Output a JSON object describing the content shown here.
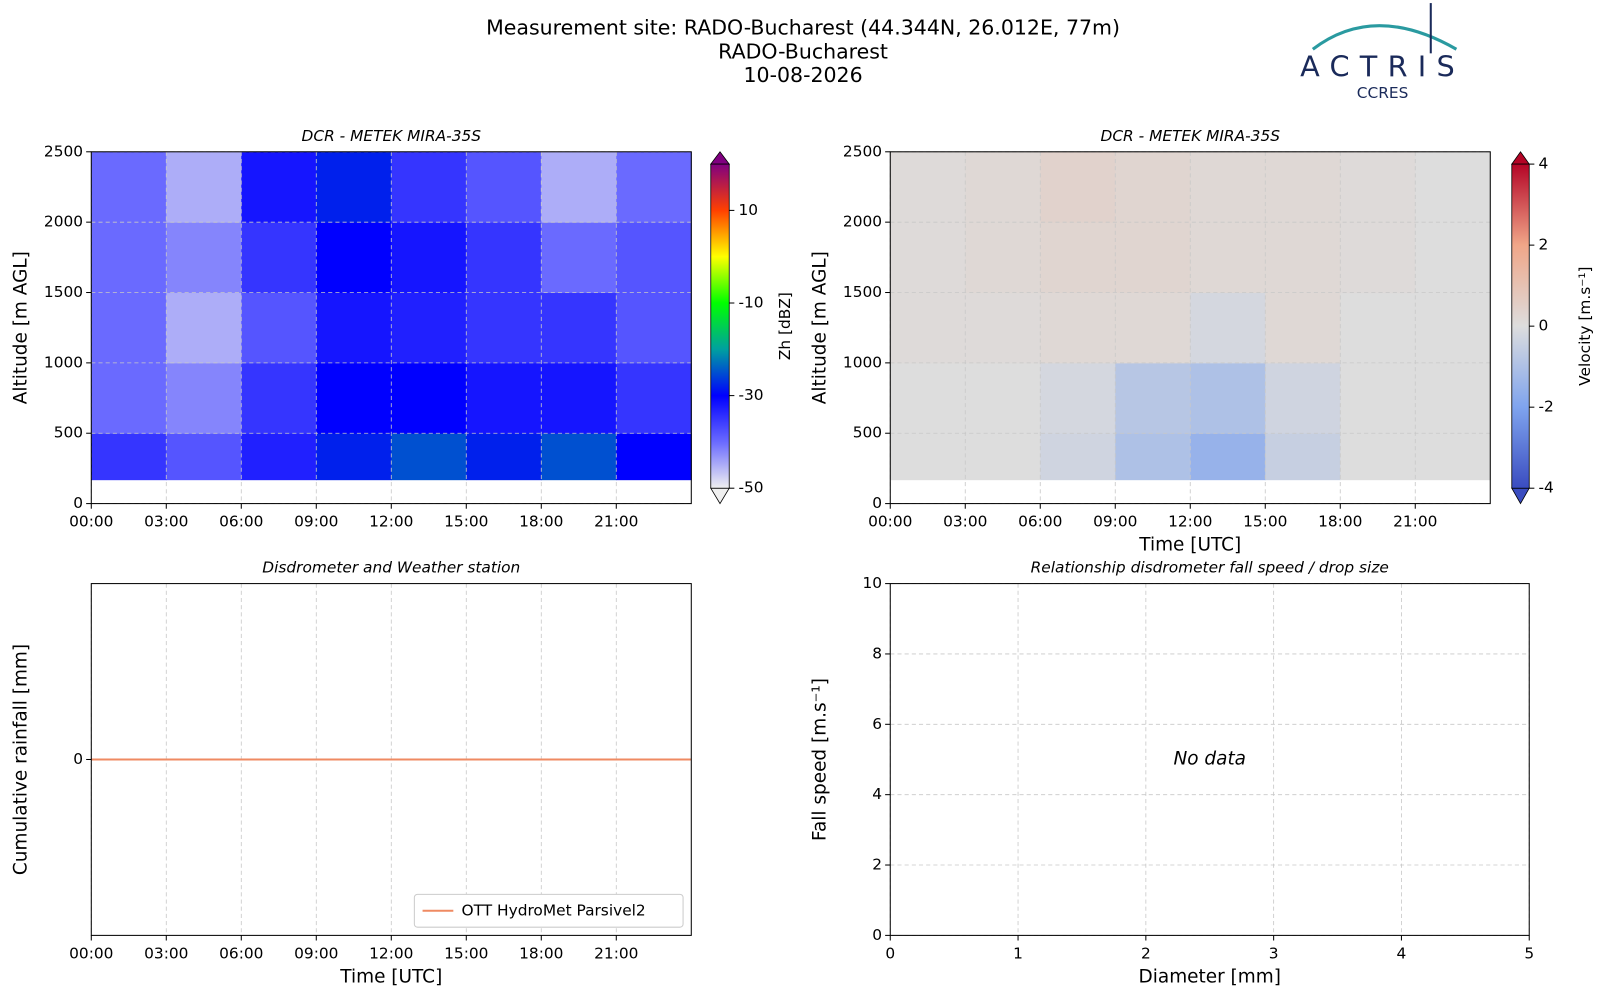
{
  "header": {
    "title": [
      "Measurement site: RADO-Bucharest (44.344N, 26.012E, 77m)",
      "RADO-Bucharest",
      "10-08-2026"
    ],
    "logo": {
      "name": "ACTRIS",
      "sub": "CCRES"
    }
  },
  "chart_data": [
    {
      "type": "heatmap",
      "title": "DCR - METEK MIRA-35S",
      "ylabel": "Altitude [m AGL]",
      "xlim": [
        0,
        24
      ],
      "xticks": [
        {
          "value": 0,
          "label": "00:00"
        },
        {
          "value": 3,
          "label": "03:00"
        },
        {
          "value": 6,
          "label": "06:00"
        },
        {
          "value": 9,
          "label": "09:00"
        },
        {
          "value": 12,
          "label": "12:00"
        },
        {
          "value": 15,
          "label": "15:00"
        },
        {
          "value": 18,
          "label": "18:00"
        },
        {
          "value": 21,
          "label": "21:00"
        }
      ],
      "ylim": [
        0,
        2500
      ],
      "yticks": [
        0,
        500,
        1000,
        1500,
        2000,
        2500
      ],
      "grid": true,
      "xbins": [
        0,
        3,
        6,
        9,
        12,
        15,
        18,
        21,
        24
      ],
      "ybins": [
        170,
        500,
        1000,
        1500,
        2000,
        2500
      ],
      "z": [
        [
          -35,
          -38,
          -33,
          -28,
          -25,
          -28,
          -25,
          -30
        ],
        [
          -40,
          -42,
          -35,
          -30,
          -30,
          -32,
          -32,
          -35
        ],
        [
          -40,
          -45,
          -38,
          -32,
          -33,
          -35,
          -35,
          -38
        ],
        [
          -40,
          -42,
          -35,
          -30,
          -32,
          -35,
          -40,
          -38
        ],
        [
          -40,
          -45,
          -32,
          -28,
          -35,
          -38,
          -45,
          -40
        ]
      ],
      "colorbar_label": "Zh [dBZ]",
      "clim": [
        -50,
        20
      ],
      "cticks": [
        -50,
        -30,
        -10,
        10
      ],
      "colormap": [
        "#f0f0f0",
        "#6a6aff",
        "#0000ff",
        "#00a0a0",
        "#00ff00",
        "#ffff00",
        "#ff4000",
        "#800080"
      ]
    },
    {
      "type": "heatmap",
      "title": "DCR - METEK MIRA-35S",
      "ylabel": "Altitude [m AGL]",
      "xlabel": "Time [UTC]",
      "xlim": [
        0,
        24
      ],
      "xticks": [
        {
          "value": 0,
          "label": "00:00"
        },
        {
          "value": 3,
          "label": "03:00"
        },
        {
          "value": 6,
          "label": "06:00"
        },
        {
          "value": 9,
          "label": "09:00"
        },
        {
          "value": 12,
          "label": "12:00"
        },
        {
          "value": 15,
          "label": "15:00"
        },
        {
          "value": 18,
          "label": "18:00"
        },
        {
          "value": 21,
          "label": "21:00"
        }
      ],
      "ylim": [
        0,
        2500
      ],
      "yticks": [
        0,
        500,
        1000,
        1500,
        2000,
        2500
      ],
      "grid": true,
      "xbins": [
        0,
        3,
        6,
        9,
        12,
        15,
        18,
        21,
        24
      ],
      "ybins": [
        170,
        500,
        1000,
        1500,
        2000,
        2500
      ],
      "z": [
        [
          0,
          0,
          -0.3,
          -1,
          -1.5,
          -0.5,
          0,
          0
        ],
        [
          0,
          0,
          -0.2,
          -0.8,
          -1,
          -0.3,
          0,
          0
        ],
        [
          0.1,
          0.1,
          0.2,
          0.2,
          -0.2,
          0.2,
          0,
          0
        ],
        [
          0.1,
          0.2,
          0.3,
          0.3,
          0.2,
          0.2,
          0.1,
          0
        ],
        [
          0.1,
          0.2,
          0.4,
          0.3,
          0.2,
          0.2,
          0.1,
          0
        ]
      ],
      "colorbar_label": "Velocity [m.s⁻¹]",
      "clim": [
        -4,
        4
      ],
      "cticks": [
        -4,
        -2,
        0,
        2,
        4
      ],
      "colormap": [
        "#3a4cc0",
        "#7fa4ee",
        "#dddddd",
        "#f0a688",
        "#b40426"
      ]
    },
    {
      "type": "line",
      "title": "Disdrometer and Weather station",
      "ylabel": "Cumulative rainfall [mm]",
      "xlabel": "Time [UTC]",
      "xlim": [
        0,
        24
      ],
      "xticks": [
        {
          "value": 0,
          "label": "00:00"
        },
        {
          "value": 3,
          "label": "03:00"
        },
        {
          "value": 6,
          "label": "06:00"
        },
        {
          "value": 9,
          "label": "09:00"
        },
        {
          "value": 12,
          "label": "12:00"
        },
        {
          "value": 15,
          "label": "15:00"
        },
        {
          "value": 18,
          "label": "18:00"
        },
        {
          "value": 21,
          "label": "21:00"
        }
      ],
      "ylim": [
        -1,
        1
      ],
      "yticks": [
        0
      ],
      "grid": true,
      "legend": "lower right",
      "x": [
        0,
        24
      ],
      "series": [
        {
          "name": "OTT HydroMet Parsivel2",
          "color": "#ef8a62",
          "values": [
            0,
            0
          ]
        }
      ]
    },
    {
      "type": "scatter",
      "title": "Relationship disdrometer fall speed / drop size",
      "ylabel": "Fall speed [m.s⁻¹]",
      "xlabel": "Diameter [mm]",
      "xlim": [
        0,
        5
      ],
      "xticks": [
        0,
        1,
        2,
        3,
        4,
        5
      ],
      "ylim": [
        0,
        10
      ],
      "yticks": [
        0,
        2,
        4,
        6,
        8,
        10
      ],
      "grid": true,
      "annotation": "No data",
      "x": [],
      "values": []
    }
  ]
}
